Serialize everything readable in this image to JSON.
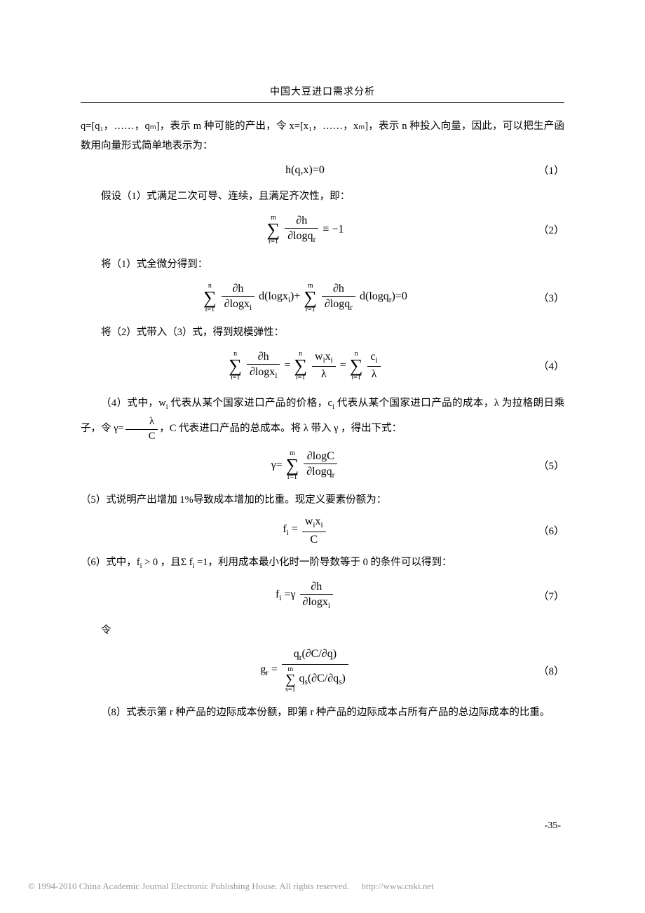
{
  "header": {
    "title": "中国大豆进口需求分析"
  },
  "paragraphs": {
    "p1": "q=[q₁，……，qₘ]，表示 m 种可能的产出，令 x=[x₁，……，xₘ]，表示 n 种投入向量，因此，可以把生产函数用向量形式简单地表示为：",
    "p2": "假设（1）式满足二次可导、连续，且满足齐次性，即：",
    "p3": "将（1）式全微分得到：",
    "p4": "将（2）式带入（3）式，得到规模弹性：",
    "p5a": "（4）式中，w",
    "p5b": " 代表从某个国家进口产品的价格，c",
    "p5c": " 代表从某个国家进口产品的成本，λ 为拉格朗日乘子，令 γ=",
    "p5d": "，C 代表进口产品的总成本。将 λ 带入 γ ，得出下式：",
    "p6": "（5）式说明产出增加 1%导致成本增加的比重。现定义要素份额为：",
    "p7a": "（6）式中，f",
    "p7b": " > 0 ，且Σ f",
    "p7c": " =1，利用成本最小化时一阶导数等于 0 的条件可以得到：",
    "p8": "令",
    "p9": "（8）式表示第 r 种产品的边际成本份额，即第 r 种产品的边际成本占所有产品的总边际成本的比重。"
  },
  "equations": {
    "e1": {
      "plain": "h(q,x)=0",
      "num": "（1）"
    },
    "e2": {
      "sum_top": "m",
      "sum_bot": "r=1",
      "frac_nu": "∂h",
      "frac_de": "∂logq",
      "frac_de_sub": "r",
      "tail": " ≡ −1",
      "num": "（2）"
    },
    "e3": {
      "s1_top": "n",
      "s1_bot": "i=1",
      "f1_nu": "∂h",
      "f1_de": "∂logx",
      "f1_sub": "i",
      "mid1": "d(logx",
      "mid1_sub": "i",
      "mid1_tail": ")+",
      "s2_top": "m",
      "s2_bot": "r=1",
      "f2_nu": "∂h",
      "f2_de": "∂logq",
      "f2_sub": "r",
      "mid2": "d(logq",
      "mid2_sub": "r",
      "mid2_tail": ")=0",
      "num": "（3）"
    },
    "e4": {
      "s1_top": "n",
      "s1_bot": "i=1",
      "f1_nu": "∂h",
      "f1_de": "∂logx",
      "f1_sub": "i",
      "eq1": "=",
      "s2_top": "n",
      "s2_bot": "i=1",
      "f2_nu_a": "w",
      "f2_nu_sub1": "i",
      "f2_nu_b": "x",
      "f2_nu_sub2": "i",
      "f2_de": "λ",
      "eq2": "=",
      "s3_top": "n",
      "s3_bot": "i=1",
      "f3_nu": "c",
      "f3_nu_sub": "i",
      "f3_de": "λ",
      "num": "（4）"
    },
    "inline_frac": {
      "nu": "λ",
      "de": "C"
    },
    "e5": {
      "head": "γ=",
      "s_top": "m",
      "s_bot": "r=1",
      "f_nu": "∂logC",
      "f_de": "∂logq",
      "f_sub": "r",
      "num": "（5）"
    },
    "e6": {
      "lhs": "f",
      "lhs_sub": "i",
      "eq": " =",
      "nu_a": "w",
      "nu_sub1": "i",
      "nu_b": "x",
      "nu_sub2": "i",
      "de": "C",
      "num": "（6）"
    },
    "e7": {
      "lhs": "f",
      "lhs_sub": "i",
      "mid": " =γ",
      "f_nu": "∂h",
      "f_de": "∂logx",
      "f_sub": "i",
      "num": "（7）"
    },
    "e8": {
      "lhs": "g",
      "lhs_sub": "r",
      "eq": " =",
      "nu_a": "q",
      "nu_sub": "r",
      "nu_b": "(∂C/∂q)",
      "de_s_top": "m",
      "de_s_bot": "s=1",
      "de_a": "q",
      "de_sub": "s",
      "de_b": "(∂C/∂q",
      "de_sub2": "s",
      "de_tail": ")",
      "num": "（8）"
    }
  },
  "subs": {
    "i": "i",
    "r": "r",
    "s": "s"
  },
  "pagenum": "-35-",
  "footer": {
    "text": "© 1994-2010 China Academic Journal Electronic Publishing House. All rights reserved.",
    "link": "http://www.cnki.net"
  }
}
